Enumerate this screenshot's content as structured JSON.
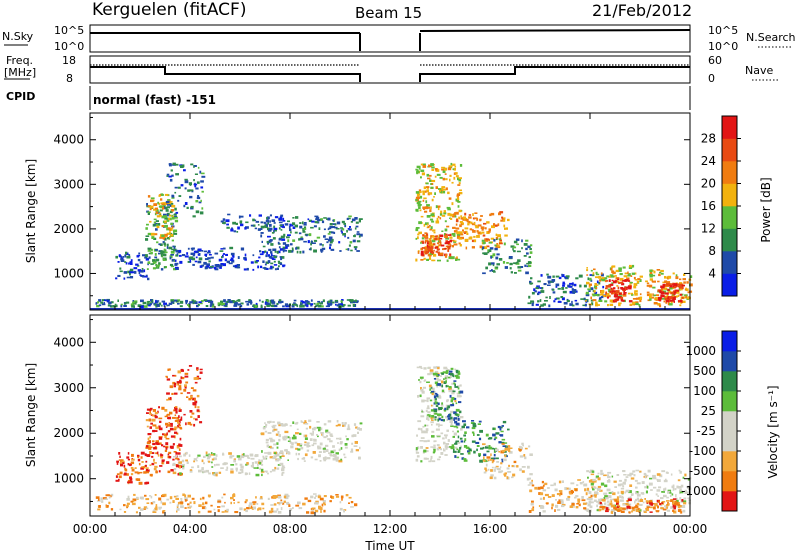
{
  "header": {
    "title": "Kerguelen (fitACF)",
    "beam": "Beam 15",
    "date": "21/Feb/2012"
  },
  "nsky_panel": {
    "left_label": "N.Sky",
    "right_label": "N.Search",
    "left_ticks": [
      "10^5",
      "10^0"
    ],
    "right_ticks": [
      "10^5",
      "10^0"
    ]
  },
  "freq_panel": {
    "left_label_1": "Freq.",
    "left_label_2": "[MHz]",
    "right_label": "Nave",
    "left_ticks": [
      "18",
      "8"
    ],
    "right_ticks": [
      "60",
      "0"
    ]
  },
  "cpid": {
    "label": "CPID",
    "value": "normal (fast) -151"
  },
  "colors": {
    "power": [
      "#0a1ee6",
      "#1f4aa8",
      "#2e8a4a",
      "#5cbc3a",
      "#f2b20e",
      "#f07c10",
      "#e84a12",
      "#e21515"
    ],
    "velocity": [
      "#e21515",
      "#f07c10",
      "#f2a83a",
      "#d3d3c8",
      "#d3d3c8",
      "#5cbc3a",
      "#2e8a4a",
      "#1f4aa8",
      "#0a1ee6"
    ]
  },
  "chart_data": [
    {
      "type": "heatmap",
      "name": "power",
      "xlabel": "",
      "ylabel": "Slant Range [km]",
      "xlim": [
        "00:00",
        "24:00"
      ],
      "ylim": [
        180,
        4600
      ],
      "yticks": [
        "1000",
        "2000",
        "3000",
        "4000"
      ],
      "colorbar_label": "Power [dB]",
      "colorbar_ticks": [
        "4",
        "8",
        "12",
        "16",
        "20",
        "24",
        "28"
      ],
      "blobs": [
        {
          "x": 0.2,
          "w": 10.5,
          "y": 280,
          "h": 150,
          "v": 0.25,
          "n": 260
        },
        {
          "x": 1.0,
          "w": 1.3,
          "y": 900,
          "h": 600,
          "v": 0.15,
          "n": 60
        },
        {
          "x": 2.2,
          "w": 1.2,
          "y": 1100,
          "h": 1500,
          "v": 0.35,
          "n": 140
        },
        {
          "x": 2.3,
          "w": 1.0,
          "y": 1800,
          "h": 1000,
          "v": 0.55,
          "n": 70
        },
        {
          "x": 3.0,
          "w": 1.5,
          "y": 2300,
          "h": 1200,
          "v": 0.25,
          "n": 70
        },
        {
          "x": 3.2,
          "w": 4.5,
          "y": 1100,
          "h": 500,
          "v": 0.15,
          "n": 160
        },
        {
          "x": 6.8,
          "w": 4.0,
          "y": 1500,
          "h": 800,
          "v": 0.25,
          "n": 200
        },
        {
          "x": 5.2,
          "w": 2.5,
          "y": 1950,
          "h": 400,
          "v": 0.2,
          "n": 60
        },
        {
          "x": 13.0,
          "w": 1.8,
          "y": 1300,
          "h": 2200,
          "v": 0.55,
          "n": 260
        },
        {
          "x": 13.2,
          "w": 1.2,
          "y": 1400,
          "h": 500,
          "v": 0.8,
          "n": 90
        },
        {
          "x": 14.5,
          "w": 2.2,
          "y": 1600,
          "h": 800,
          "v": 0.65,
          "n": 120
        },
        {
          "x": 15.6,
          "w": 2.0,
          "y": 1000,
          "h": 800,
          "v": 0.3,
          "n": 80
        },
        {
          "x": 17.5,
          "w": 3.0,
          "y": 300,
          "h": 700,
          "v": 0.2,
          "n": 120
        },
        {
          "x": 19.8,
          "w": 2.2,
          "y": 300,
          "h": 900,
          "v": 0.55,
          "n": 150
        },
        {
          "x": 20.6,
          "w": 1.0,
          "y": 400,
          "h": 500,
          "v": 0.9,
          "n": 60
        },
        {
          "x": 22.2,
          "w": 1.8,
          "y": 300,
          "h": 800,
          "v": 0.6,
          "n": 120
        },
        {
          "x": 22.7,
          "w": 1.0,
          "y": 400,
          "h": 400,
          "v": 0.9,
          "n": 60
        }
      ]
    },
    {
      "type": "heatmap",
      "name": "velocity",
      "xlabel": "Time UT",
      "ylabel": "Slant Range [km]",
      "xlim": [
        "00:00",
        "24:00"
      ],
      "ylim": [
        180,
        4600
      ],
      "xticks": [
        "00:00",
        "04:00",
        "08:00",
        "12:00",
        "16:00",
        "20:00",
        "00:00"
      ],
      "yticks": [
        "1000",
        "2000",
        "3000",
        "4000"
      ],
      "colorbar_label": "Velocity [m s⁻¹]",
      "colorbar_ticks": [
        "-1000",
        "-500",
        "-100",
        "-25",
        "25",
        "100",
        "500",
        "1000"
      ],
      "blobs": [
        {
          "x": 0.2,
          "w": 10.5,
          "y": 280,
          "h": 400,
          "v": 0.3,
          "n": 240
        },
        {
          "x": 1.0,
          "w": 1.3,
          "y": 900,
          "h": 700,
          "v": 0.12,
          "n": 70
        },
        {
          "x": 2.2,
          "w": 1.4,
          "y": 1100,
          "h": 1500,
          "v": 0.12,
          "n": 160
        },
        {
          "x": 3.0,
          "w": 1.4,
          "y": 2200,
          "h": 1300,
          "v": 0.1,
          "n": 90
        },
        {
          "x": 3.2,
          "w": 4.5,
          "y": 1100,
          "h": 500,
          "v": 0.45,
          "n": 160
        },
        {
          "x": 6.8,
          "w": 4.0,
          "y": 1400,
          "h": 900,
          "v": 0.45,
          "n": 220
        },
        {
          "x": 13.0,
          "w": 1.8,
          "y": 1400,
          "h": 2100,
          "v": 0.45,
          "n": 220
        },
        {
          "x": 13.6,
          "w": 1.2,
          "y": 2300,
          "h": 1100,
          "v": 0.72,
          "n": 90
        },
        {
          "x": 14.5,
          "w": 2.2,
          "y": 1400,
          "h": 900,
          "v": 0.72,
          "n": 110
        },
        {
          "x": 15.6,
          "w": 2.0,
          "y": 1000,
          "h": 800,
          "v": 0.35,
          "n": 80
        },
        {
          "x": 17.5,
          "w": 3.0,
          "y": 300,
          "h": 700,
          "v": 0.3,
          "n": 120
        },
        {
          "x": 19.8,
          "w": 4.2,
          "y": 300,
          "h": 900,
          "v": 0.45,
          "n": 240
        },
        {
          "x": 20.3,
          "w": 3.5,
          "y": 280,
          "h": 300,
          "v": 0.2,
          "n": 110
        }
      ]
    }
  ]
}
